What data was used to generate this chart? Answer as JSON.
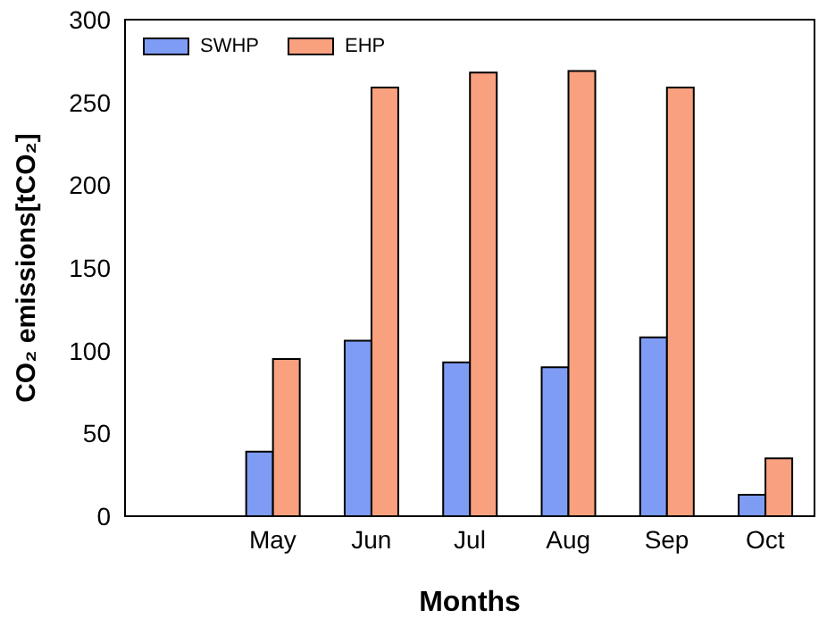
{
  "chart_data": {
    "type": "bar",
    "xlabel": "Months",
    "ylabel": "CO₂ emissions[tCO₂]",
    "categories": [
      "May",
      "Jun",
      "Jul",
      "Aug",
      "Sep",
      "Oct"
    ],
    "series": [
      {
        "name": "SWHP",
        "color": "#7f9cf5",
        "values": [
          39,
          106,
          93,
          90,
          108,
          13
        ]
      },
      {
        "name": "EHP",
        "color": "#f9a07e",
        "values": [
          95,
          259,
          268,
          269,
          259,
          35
        ]
      }
    ],
    "ylim": [
      0,
      300
    ],
    "yticks": [
      0,
      50,
      100,
      150,
      200,
      250,
      300
    ],
    "grid": false,
    "legend": "top left"
  }
}
